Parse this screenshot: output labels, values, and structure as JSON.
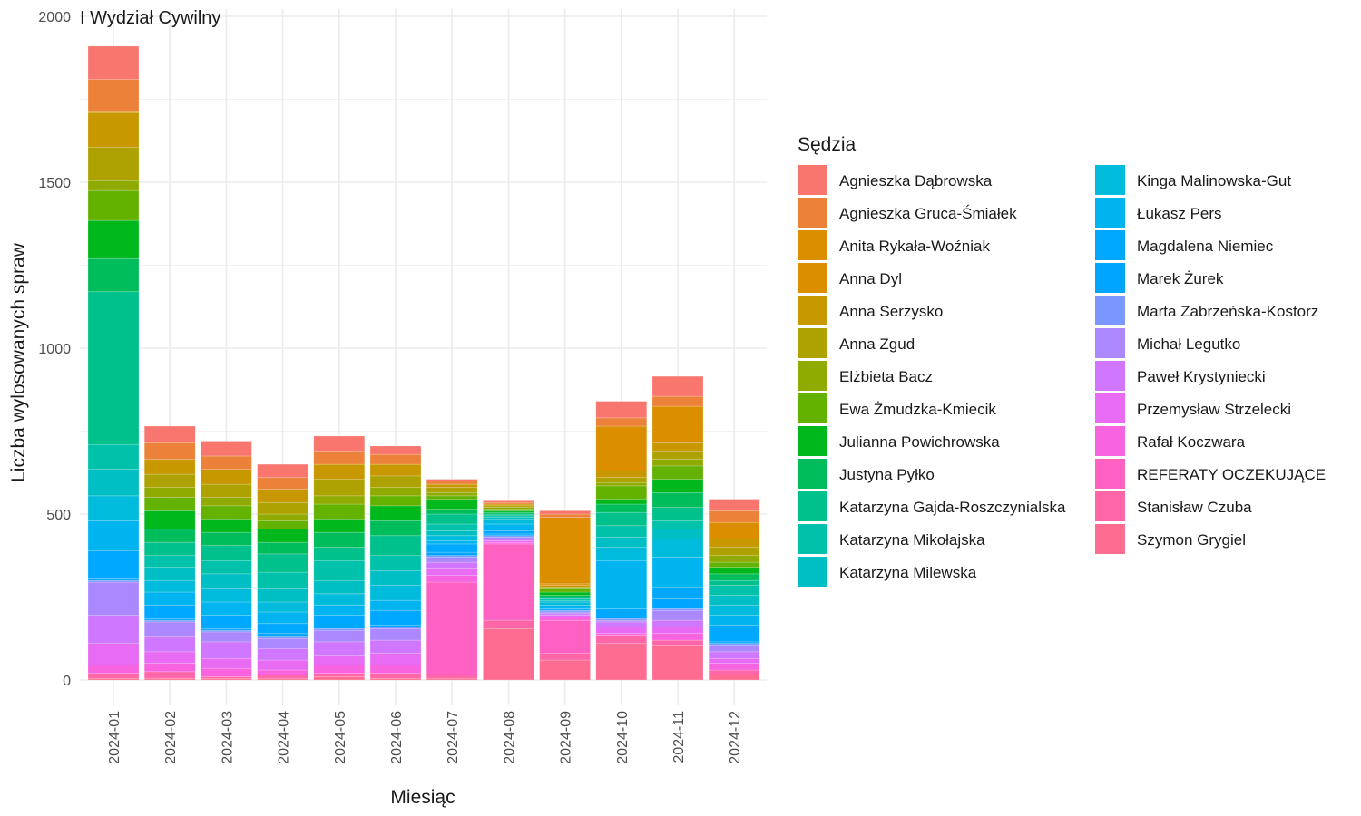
{
  "chart_data": {
    "type": "bar",
    "stacked": true,
    "title": "I Wydział Cywilny",
    "xlabel": "Miesiąc",
    "ylabel": "Liczba wylosowanych spraw",
    "ylim": [
      0,
      2000
    ],
    "y_ticks": [
      "0",
      "500",
      "1000",
      "1500",
      "2000"
    ],
    "grid": true,
    "legend_title": "Sędzia",
    "legend_position": "right",
    "categories": [
      "2024-01",
      "2024-02",
      "2024-03",
      "2024-04",
      "2024-05",
      "2024-06",
      "2024-07",
      "2024-08",
      "2024-09",
      "2024-10",
      "2024-11",
      "2024-12"
    ],
    "series": [
      {
        "name": "Agnieszka Dąbrowska",
        "color": "#F8766D",
        "values": [
          100,
          50,
          45,
          40,
          45,
          25,
          5,
          5,
          10,
          50,
          60,
          35
        ]
      },
      {
        "name": "Agnieszka Gruca-Śmiałek",
        "color": "#EC8239",
        "values": [
          95,
          50,
          40,
          35,
          40,
          30,
          10,
          5,
          10,
          25,
          30,
          35
        ]
      },
      {
        "name": "Anita Rykała-Woźniak",
        "color": "#DB8E00",
        "values": [
          5,
          0,
          0,
          0,
          0,
          0,
          0,
          0,
          200,
          135,
          110,
          50
        ]
      },
      {
        "name": "Anna Dyl",
        "color": "#DB8E00",
        "values": [
          0,
          0,
          0,
          0,
          0,
          0,
          0,
          0,
          5,
          0,
          0,
          0
        ]
      },
      {
        "name": "Anna Serzysko",
        "color": "#C79800",
        "values": [
          105,
          45,
          45,
          40,
          45,
          35,
          10,
          5,
          5,
          20,
          25,
          25
        ]
      },
      {
        "name": "Anna Zgud",
        "color": "#AEA200",
        "values": [
          100,
          40,
          40,
          35,
          50,
          35,
          15,
          5,
          0,
          15,
          25,
          25
        ]
      },
      {
        "name": "Elżbieta Bacz",
        "color": "#8FAA00",
        "values": [
          30,
          30,
          25,
          20,
          25,
          25,
          10,
          5,
          5,
          10,
          20,
          20
        ]
      },
      {
        "name": "Ewa Żmudzka-Kmiecik",
        "color": "#64B200",
        "values": [
          90,
          40,
          40,
          25,
          45,
          30,
          10,
          5,
          10,
          40,
          40,
          15
        ]
      },
      {
        "name": "Julianna Powichrowska",
        "color": "#00B81B",
        "values": [
          115,
          55,
          40,
          40,
          40,
          45,
          30,
          5,
          10,
          15,
          40,
          20
        ]
      },
      {
        "name": "Justyna Pyłko",
        "color": "#00BD5C",
        "values": [
          100,
          40,
          40,
          35,
          45,
          45,
          15,
          5,
          5,
          25,
          45,
          20
        ]
      },
      {
        "name": "Katarzyna Gajda-Roszczynialska",
        "color": "#00C08B",
        "values": [
          460,
          40,
          45,
          55,
          40,
          60,
          30,
          5,
          5,
          40,
          40,
          15
        ]
      },
      {
        "name": "Katarzyna Mikołajska",
        "color": "#00C1AA",
        "values": [
          75,
          35,
          40,
          50,
          60,
          45,
          20,
          5,
          5,
          35,
          25,
          30
        ]
      },
      {
        "name": "Katarzyna Milewska",
        "color": "#00BFC4",
        "values": [
          80,
          40,
          45,
          40,
          40,
          45,
          15,
          5,
          5,
          30,
          30,
          30
        ]
      },
      {
        "name": "Kinga Malinowska-Gut",
        "color": "#00BBDB",
        "values": [
          75,
          35,
          40,
          30,
          35,
          45,
          15,
          15,
          10,
          40,
          55,
          30
        ]
      },
      {
        "name": "Łukasz Pers",
        "color": "#00B4EF",
        "values": [
          90,
          40,
          40,
          35,
          30,
          30,
          10,
          20,
          10,
          145,
          90,
          30
        ]
      },
      {
        "name": "Magdalena Niemiec",
        "color": "#00A8FF",
        "values": [
          85,
          40,
          40,
          30,
          35,
          45,
          25,
          10,
          5,
          25,
          35,
          50
        ]
      },
      {
        "name": "Marek Żurek",
        "color": "#00A5FF",
        "values": [
          5,
          5,
          5,
          10,
          5,
          5,
          10,
          5,
          0,
          5,
          30,
          5
        ]
      },
      {
        "name": "Marta Zabrzeńska-Kostorz",
        "color": "#7997FF",
        "values": [
          5,
          5,
          5,
          5,
          5,
          5,
          5,
          5,
          5,
          5,
          5,
          5
        ]
      },
      {
        "name": "Michał Legutko",
        "color": "#AC88FF",
        "values": [
          100,
          45,
          30,
          30,
          35,
          35,
          15,
          5,
          5,
          5,
          30,
          20
        ]
      },
      {
        "name": "Paweł Krystyniecki",
        "color": "#CF78FF",
        "values": [
          85,
          45,
          50,
          35,
          40,
          40,
          20,
          5,
          5,
          15,
          20,
          20
        ]
      },
      {
        "name": "Przemysław Strzelecki",
        "color": "#E76BF3",
        "values": [
          65,
          35,
          30,
          30,
          30,
          35,
          20,
          5,
          5,
          20,
          20,
          15
        ]
      },
      {
        "name": "Rafał Koczwara",
        "color": "#F863DF",
        "values": [
          25,
          25,
          25,
          15,
          25,
          25,
          20,
          5,
          10,
          5,
          20,
          20
        ]
      },
      {
        "name": "REFERATY OCZEKUJĄCE",
        "color": "#FF61C3",
        "values": [
          0,
          0,
          0,
          0,
          0,
          0,
          280,
          230,
          100,
          0,
          0,
          0
        ]
      },
      {
        "name": "Stanisław Czuba",
        "color": "#FF66A8",
        "values": [
          15,
          20,
          5,
          10,
          10,
          15,
          10,
          25,
          20,
          25,
          15,
          15
        ]
      },
      {
        "name": "Szymon Grygiel",
        "color": "#FF6C91",
        "values": [
          5,
          5,
          5,
          5,
          10,
          5,
          5,
          155,
          60,
          110,
          105,
          15
        ]
      }
    ]
  }
}
